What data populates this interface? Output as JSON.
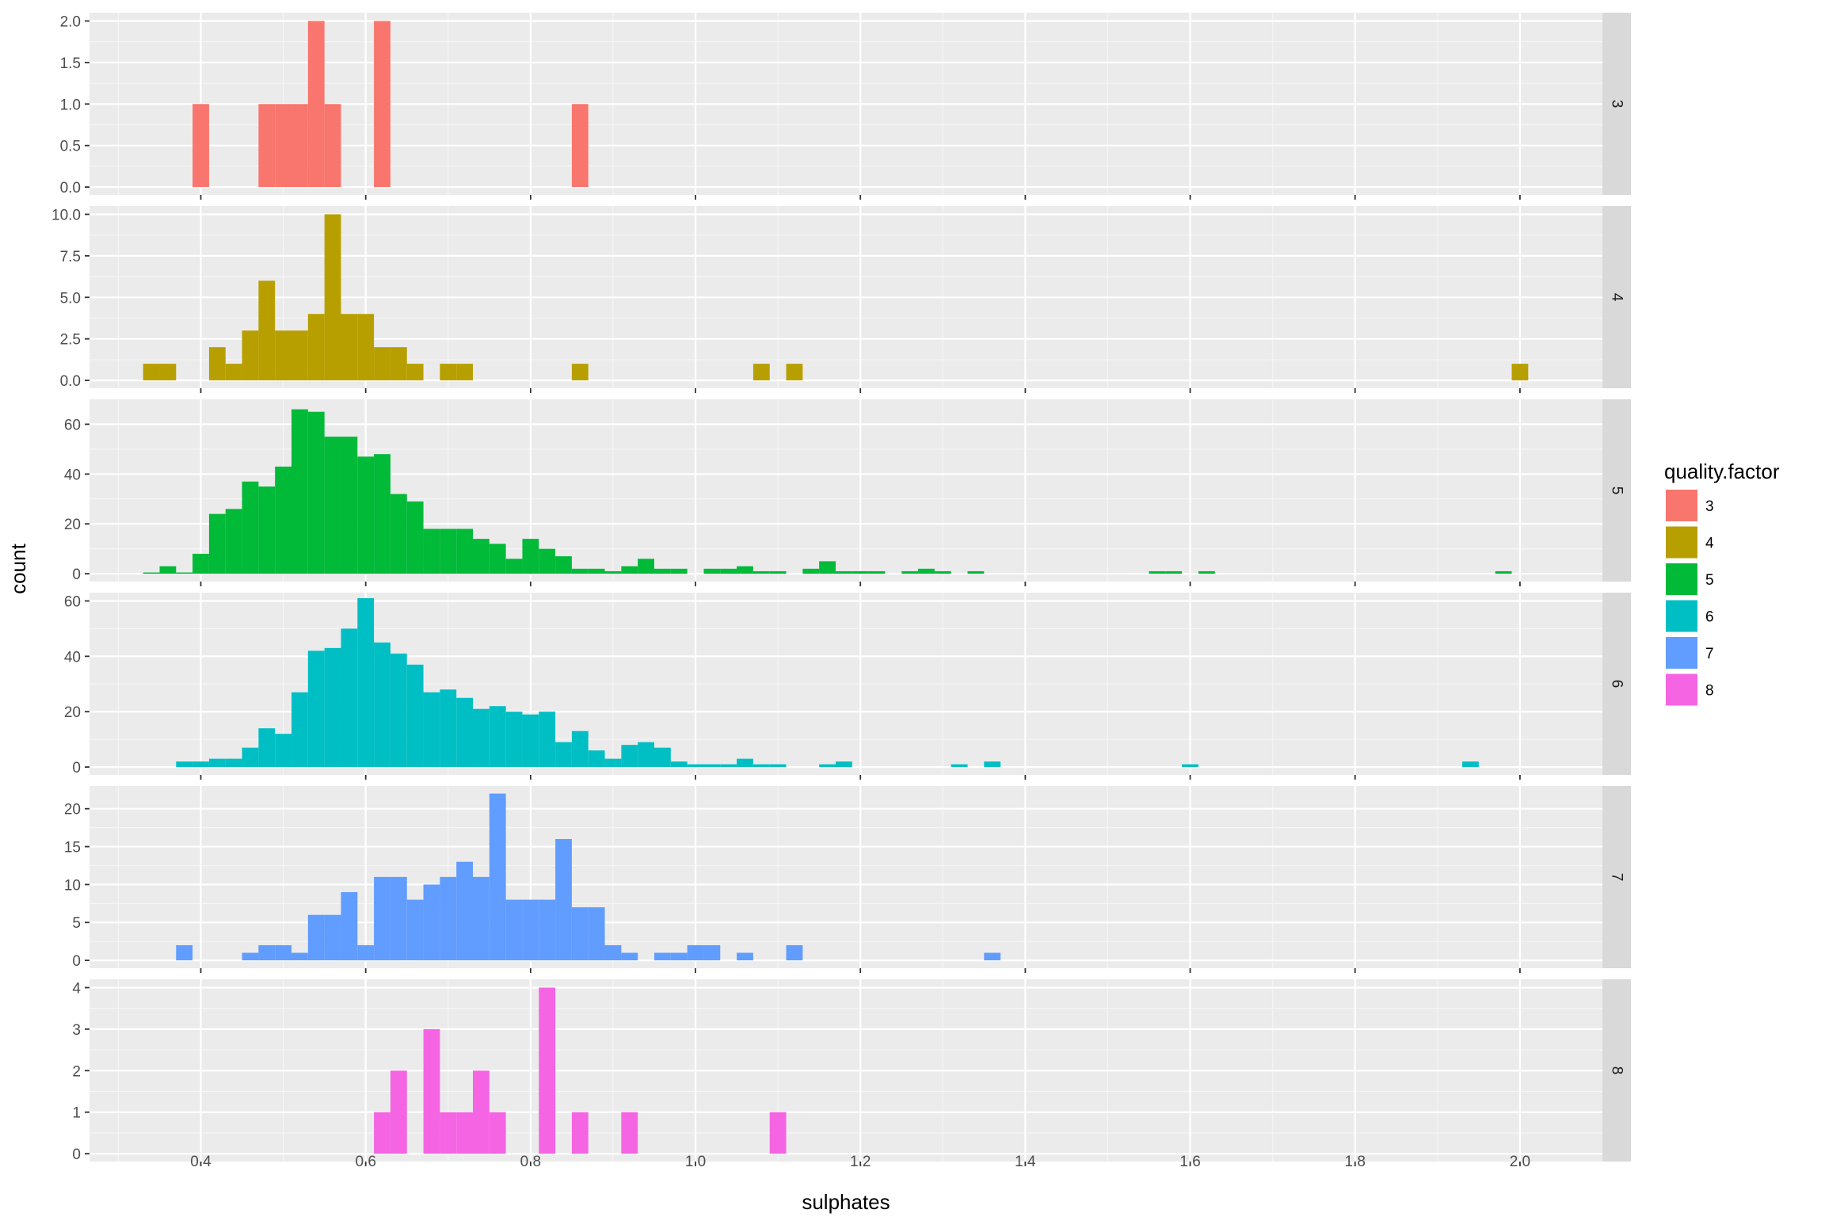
{
  "chart_data": {
    "type": "bar",
    "subtype": "faceted-histogram",
    "xlabel": "sulphates",
    "ylabel": "count",
    "xlim": [
      0.265,
      2.1
    ],
    "x_ticks": [
      0.4,
      0.6,
      0.8,
      1.0,
      1.2,
      1.4,
      1.6,
      1.8,
      2.0
    ],
    "x_tick_labels": [
      "0.4",
      "0.6",
      "0.8",
      "1.0",
      "1.2",
      "1.4",
      "1.6",
      "1.8",
      "2.0"
    ],
    "bin_width": 0.02,
    "facet_by": "quality.factor",
    "grid": true,
    "legend": {
      "title": "quality.factor",
      "position": "right",
      "entries": [
        {
          "label": "3",
          "color": "#F8766D"
        },
        {
          "label": "4",
          "color": "#B79F00"
        },
        {
          "label": "5",
          "color": "#00BA38"
        },
        {
          "label": "6",
          "color": "#00BFC4"
        },
        {
          "label": "7",
          "color": "#619CFF"
        },
        {
          "label": "8",
          "color": "#F564E3"
        }
      ]
    },
    "facets": [
      {
        "label": "3",
        "color": "#F8766D",
        "ylim": [
          0,
          2.1
        ],
        "y_ticks": [
          0,
          0.5,
          1,
          1.5,
          2
        ],
        "y_tick_labels": [
          "0.0",
          "0.5",
          "1.0",
          "1.5",
          "2.0"
        ],
        "bins": [
          [
            0.4,
            1
          ],
          [
            0.48,
            1
          ],
          [
            0.5,
            1
          ],
          [
            0.52,
            1
          ],
          [
            0.54,
            2
          ],
          [
            0.56,
            1
          ],
          [
            0.62,
            2
          ],
          [
            0.86,
            1
          ]
        ]
      },
      {
        "label": "4",
        "color": "#B79F00",
        "ylim": [
          0,
          10.5
        ],
        "y_ticks": [
          0,
          2.5,
          5,
          7.5,
          10
        ],
        "y_tick_labels": [
          "0.0",
          "2.5",
          "5.0",
          "7.5",
          "10.0"
        ],
        "bins": [
          [
            0.34,
            1
          ],
          [
            0.36,
            1
          ],
          [
            0.42,
            2
          ],
          [
            0.44,
            1
          ],
          [
            0.46,
            3
          ],
          [
            0.48,
            6
          ],
          [
            0.5,
            3
          ],
          [
            0.52,
            3
          ],
          [
            0.54,
            4
          ],
          [
            0.56,
            10
          ],
          [
            0.58,
            4
          ],
          [
            0.6,
            4
          ],
          [
            0.62,
            2
          ],
          [
            0.64,
            2
          ],
          [
            0.66,
            1
          ],
          [
            0.7,
            1
          ],
          [
            0.72,
            1
          ],
          [
            0.86,
            1
          ],
          [
            1.08,
            1
          ],
          [
            1.12,
            1
          ],
          [
            2.0,
            1
          ]
        ]
      },
      {
        "label": "5",
        "color": "#00BA38",
        "ylim": [
          0,
          70
        ],
        "y_ticks": [
          0,
          20,
          40,
          60
        ],
        "y_tick_labels": [
          "0",
          "20",
          "40",
          "60"
        ],
        "bins": [
          [
            0.34,
            0.5
          ],
          [
            0.36,
            3
          ],
          [
            0.38,
            0.5
          ],
          [
            0.4,
            8
          ],
          [
            0.42,
            24
          ],
          [
            0.44,
            26
          ],
          [
            0.46,
            37
          ],
          [
            0.48,
            35
          ],
          [
            0.5,
            43
          ],
          [
            0.52,
            66
          ],
          [
            0.54,
            65
          ],
          [
            0.56,
            55
          ],
          [
            0.58,
            55
          ],
          [
            0.6,
            47
          ],
          [
            0.62,
            48
          ],
          [
            0.64,
            32
          ],
          [
            0.66,
            29
          ],
          [
            0.68,
            18
          ],
          [
            0.7,
            18
          ],
          [
            0.72,
            18
          ],
          [
            0.74,
            14
          ],
          [
            0.76,
            12
          ],
          [
            0.78,
            6
          ],
          [
            0.8,
            14
          ],
          [
            0.82,
            10
          ],
          [
            0.84,
            7
          ],
          [
            0.86,
            2
          ],
          [
            0.88,
            2
          ],
          [
            0.9,
            1
          ],
          [
            0.92,
            3
          ],
          [
            0.94,
            6
          ],
          [
            0.96,
            2
          ],
          [
            0.98,
            2
          ],
          [
            1.02,
            2
          ],
          [
            1.04,
            2
          ],
          [
            1.06,
            3
          ],
          [
            1.08,
            1
          ],
          [
            1.1,
            1
          ],
          [
            1.14,
            2
          ],
          [
            1.16,
            5
          ],
          [
            1.18,
            1
          ],
          [
            1.2,
            1
          ],
          [
            1.22,
            1
          ],
          [
            1.26,
            1
          ],
          [
            1.28,
            2
          ],
          [
            1.3,
            1
          ],
          [
            1.34,
            1
          ],
          [
            1.56,
            1
          ],
          [
            1.58,
            1
          ],
          [
            1.62,
            1
          ],
          [
            1.98,
            1
          ]
        ]
      },
      {
        "label": "6",
        "color": "#00BFC4",
        "ylim": [
          0,
          63
        ],
        "y_ticks": [
          0,
          20,
          40,
          60
        ],
        "y_tick_labels": [
          "0",
          "20",
          "40",
          "60"
        ],
        "bins": [
          [
            0.38,
            2
          ],
          [
            0.4,
            2
          ],
          [
            0.42,
            3
          ],
          [
            0.44,
            3
          ],
          [
            0.46,
            7
          ],
          [
            0.48,
            14
          ],
          [
            0.5,
            12
          ],
          [
            0.52,
            27
          ],
          [
            0.54,
            42
          ],
          [
            0.56,
            43
          ],
          [
            0.58,
            50
          ],
          [
            0.6,
            61
          ],
          [
            0.62,
            45
          ],
          [
            0.64,
            41
          ],
          [
            0.66,
            37
          ],
          [
            0.68,
            27
          ],
          [
            0.7,
            28
          ],
          [
            0.72,
            25
          ],
          [
            0.74,
            21
          ],
          [
            0.76,
            22
          ],
          [
            0.78,
            20
          ],
          [
            0.8,
            19
          ],
          [
            0.82,
            20
          ],
          [
            0.84,
            9
          ],
          [
            0.86,
            13
          ],
          [
            0.88,
            6
          ],
          [
            0.9,
            3
          ],
          [
            0.92,
            8
          ],
          [
            0.94,
            9
          ],
          [
            0.96,
            7
          ],
          [
            0.98,
            2
          ],
          [
            1.0,
            1
          ],
          [
            1.02,
            1
          ],
          [
            1.04,
            1
          ],
          [
            1.06,
            3
          ],
          [
            1.08,
            1
          ],
          [
            1.1,
            1
          ],
          [
            1.16,
            1
          ],
          [
            1.18,
            2
          ],
          [
            1.32,
            1
          ],
          [
            1.36,
            2
          ],
          [
            1.6,
            1
          ],
          [
            1.94,
            2
          ]
        ]
      },
      {
        "label": "7",
        "color": "#619CFF",
        "ylim": [
          0,
          23
        ],
        "y_ticks": [
          0,
          5,
          10,
          15,
          20
        ],
        "y_tick_labels": [
          "0",
          "5",
          "10",
          "15",
          "20"
        ],
        "bins": [
          [
            0.38,
            2
          ],
          [
            0.46,
            1
          ],
          [
            0.48,
            2
          ],
          [
            0.5,
            2
          ],
          [
            0.52,
            1
          ],
          [
            0.54,
            6
          ],
          [
            0.56,
            6
          ],
          [
            0.58,
            9
          ],
          [
            0.6,
            2
          ],
          [
            0.62,
            11
          ],
          [
            0.64,
            11
          ],
          [
            0.66,
            8
          ],
          [
            0.68,
            10
          ],
          [
            0.7,
            11
          ],
          [
            0.72,
            13
          ],
          [
            0.74,
            11
          ],
          [
            0.76,
            22
          ],
          [
            0.78,
            8
          ],
          [
            0.8,
            8
          ],
          [
            0.82,
            8
          ],
          [
            0.84,
            16
          ],
          [
            0.86,
            7
          ],
          [
            0.88,
            7
          ],
          [
            0.9,
            2
          ],
          [
            0.92,
            1
          ],
          [
            0.96,
            1
          ],
          [
            0.98,
            1
          ],
          [
            1.0,
            2
          ],
          [
            1.02,
            2
          ],
          [
            1.06,
            1
          ],
          [
            1.12,
            2
          ],
          [
            1.36,
            1
          ]
        ]
      },
      {
        "label": "8",
        "color": "#F564E3",
        "ylim": [
          0,
          4.2
        ],
        "y_ticks": [
          0,
          1,
          2,
          3,
          4
        ],
        "y_tick_labels": [
          "0",
          "1",
          "2",
          "3",
          "4"
        ],
        "bins": [
          [
            0.62,
            1
          ],
          [
            0.64,
            2
          ],
          [
            0.68,
            3
          ],
          [
            0.7,
            1
          ],
          [
            0.72,
            1
          ],
          [
            0.74,
            2
          ],
          [
            0.76,
            1
          ],
          [
            0.82,
            4
          ],
          [
            0.86,
            1
          ],
          [
            0.92,
            1
          ],
          [
            1.1,
            1
          ]
        ]
      }
    ]
  }
}
